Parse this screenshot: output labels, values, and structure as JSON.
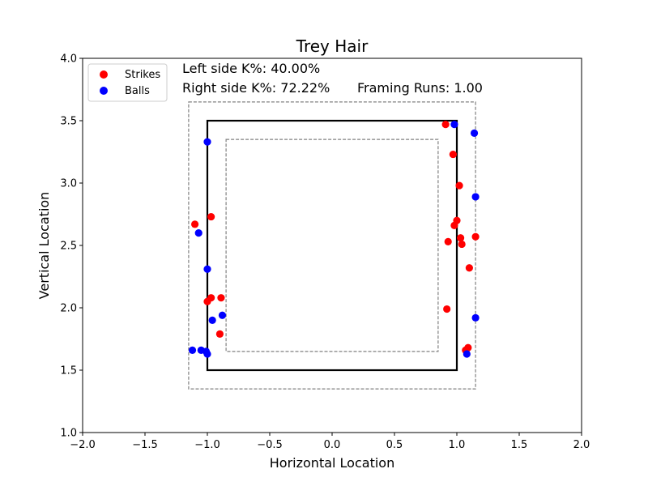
{
  "chart_data": {
    "type": "scatter",
    "title": "Trey Hair",
    "xlabel": "Horizontal Location",
    "ylabel": "Vertical Location",
    "xlim": [
      -2.0,
      2.0
    ],
    "ylim": [
      1.0,
      4.0
    ],
    "x_ticks": [
      "−2.0",
      "−1.5",
      "−1.0",
      "−0.5",
      "0.0",
      "0.5",
      "1.0",
      "1.5",
      "2.0"
    ],
    "y_ticks": [
      "1.0",
      "1.5",
      "2.0",
      "2.5",
      "3.0",
      "3.5",
      "4.0"
    ],
    "x_tick_values": [
      -2.0,
      -1.5,
      -1.0,
      -0.5,
      0.0,
      0.5,
      1.0,
      1.5,
      2.0
    ],
    "y_tick_values": [
      1.0,
      1.5,
      2.0,
      2.5,
      3.0,
      3.5,
      4.0
    ],
    "annotations": {
      "left_k": "Left side K%: 40.00%",
      "right_k": "Right side K%: 72.22%",
      "framing": "Framing Runs: 1.00"
    },
    "legend": {
      "placement": "top-left",
      "entries": [
        "Strikes",
        "Balls"
      ]
    },
    "zones": {
      "strike_zone": {
        "x": [
          -1.0,
          1.0
        ],
        "y": [
          1.5,
          3.5
        ]
      },
      "outer_zone": {
        "x": [
          -1.15,
          1.15
        ],
        "y": [
          1.35,
          3.65
        ]
      },
      "inner_zone": {
        "x": [
          -0.85,
          0.85
        ],
        "y": [
          1.65,
          3.35
        ]
      }
    },
    "colors": {
      "strikes": "#ff0000",
      "balls": "#0000ff",
      "strike_zone": "#000000",
      "zone_dashed": "#808080"
    },
    "series": [
      {
        "name": "Strikes",
        "points": [
          [
            -1.1,
            2.67
          ],
          [
            -0.97,
            2.73
          ],
          [
            -0.97,
            2.08
          ],
          [
            -1.0,
            2.05
          ],
          [
            -0.89,
            2.08
          ],
          [
            -0.9,
            1.79
          ],
          [
            0.91,
            3.47
          ],
          [
            0.97,
            3.23
          ],
          [
            1.02,
            2.98
          ],
          [
            1.0,
            2.7
          ],
          [
            0.98,
            2.66
          ],
          [
            1.03,
            2.56
          ],
          [
            1.15,
            2.57
          ],
          [
            1.04,
            2.51
          ],
          [
            0.93,
            2.53
          ],
          [
            1.1,
            2.32
          ],
          [
            0.92,
            1.99
          ],
          [
            1.07,
            1.66
          ],
          [
            1.09,
            1.68
          ]
        ]
      },
      {
        "name": "Balls",
        "points": [
          [
            -1.0,
            3.33
          ],
          [
            -1.07,
            2.6
          ],
          [
            -1.0,
            2.31
          ],
          [
            -0.88,
            1.94
          ],
          [
            -0.96,
            1.9
          ],
          [
            -1.12,
            1.66
          ],
          [
            -1.05,
            1.66
          ],
          [
            -1.01,
            1.65
          ],
          [
            -1.0,
            1.63
          ],
          [
            0.98,
            3.47
          ],
          [
            1.14,
            3.4
          ],
          [
            1.15,
            2.89
          ],
          [
            1.15,
            1.92
          ],
          [
            1.08,
            1.63
          ]
        ]
      }
    ]
  }
}
